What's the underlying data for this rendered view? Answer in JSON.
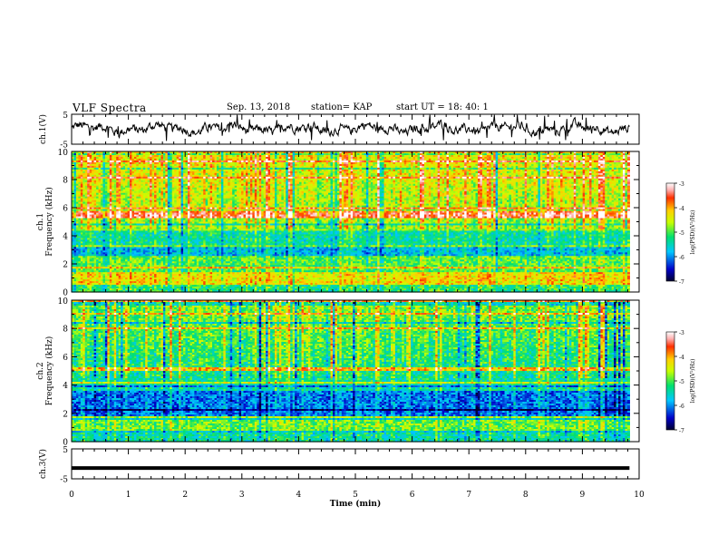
{
  "header": {
    "title": "VLF Spectra",
    "date": "Sep. 13, 2018",
    "station": "station= KAP",
    "start": "start  UT  =   18: 40: 1"
  },
  "chart_data": [
    {
      "type": "line",
      "panel": "ch1-waveform",
      "ylabel": "ch.1(V)",
      "ylim": [
        -5,
        5
      ],
      "yticks": [
        -5,
        5
      ],
      "xlim": [
        0,
        10
      ],
      "series_color": "#000000"
    },
    {
      "type": "heatmap",
      "panel": "ch1-spectrogram",
      "ylabel": "ch.1 Frequency (kHz)",
      "ylim": [
        0,
        10
      ],
      "yticks": [
        0,
        2,
        4,
        6,
        8,
        10
      ],
      "xlim": [
        0,
        10
      ],
      "colorbar": {
        "label": "log(PSD)(V²/Hz)",
        "range": [
          -7,
          -3
        ],
        "ticks": [
          -3,
          -4,
          -5,
          -6,
          -7
        ]
      }
    },
    {
      "type": "heatmap",
      "panel": "ch2-spectrogram",
      "ylabel": "ch.2 Frequency (kHz)",
      "ylim": [
        0,
        10
      ],
      "yticks": [
        0,
        2,
        4,
        6,
        8,
        10
      ],
      "xlim": [
        0,
        10
      ],
      "colorbar": {
        "label": "log(PSD)(V²/Hz)",
        "range": [
          -7,
          -3
        ],
        "ticks": [
          -3,
          -4,
          -5,
          -6,
          -7
        ]
      }
    },
    {
      "type": "line",
      "panel": "ch3-waveform",
      "ylabel": "ch.3(V)",
      "ylim": [
        -5,
        5
      ],
      "yticks": [
        -5,
        5
      ],
      "xlim": [
        0,
        10
      ],
      "series_color": "#000000"
    }
  ],
  "xaxis": {
    "label": "Time  (min)",
    "ticks": [
      "0",
      "1",
      "2",
      "3",
      "4",
      "5",
      "6",
      "7",
      "8",
      "9",
      "10"
    ]
  }
}
